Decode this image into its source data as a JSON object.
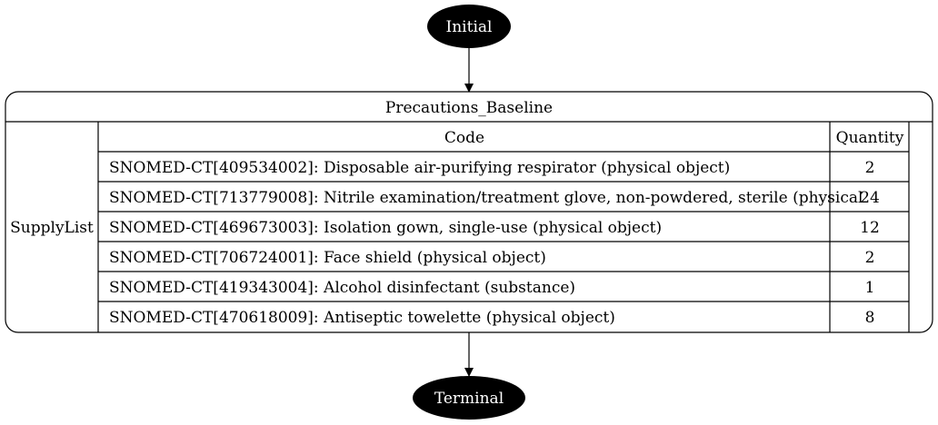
{
  "diagram": {
    "start_node": {
      "label": "Initial"
    },
    "end_node": {
      "label": "Terminal"
    },
    "state": {
      "title": "Precautions_Baseline",
      "row_label": "SupplyList",
      "columns": {
        "code": "Code",
        "quantity": "Quantity"
      },
      "rows": [
        {
          "code": "SNOMED-CT[409534002]: Disposable air-purifying respirator (physical object)",
          "quantity": "2"
        },
        {
          "code": "SNOMED-CT[713779008]: Nitrile examination/treatment glove, non-powdered, sterile (physical",
          "quantity": "24"
        },
        {
          "code": "SNOMED-CT[469673003]: Isolation gown, single-use (physical object)",
          "quantity": "12"
        },
        {
          "code": "SNOMED-CT[706724001]: Face shield (physical object)",
          "quantity": "2"
        },
        {
          "code": "SNOMED-CT[419343004]: Alcohol disinfectant (substance)",
          "quantity": "1"
        },
        {
          "code": "SNOMED-CT[470618009]: Antiseptic towelette (physical object)",
          "quantity": "8"
        }
      ]
    }
  }
}
